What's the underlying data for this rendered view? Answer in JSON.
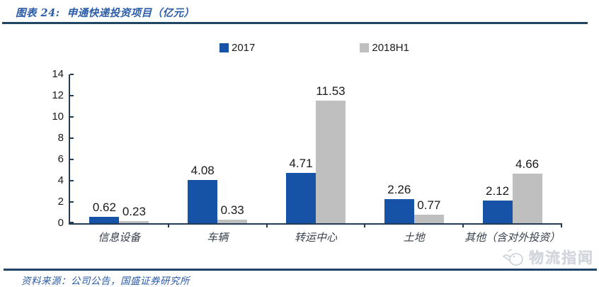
{
  "header": {
    "figure_label": "图表 24:",
    "title": "申通快递投资项目（亿元）"
  },
  "chart_data": {
    "type": "bar",
    "title": "申通快递投资项目（亿元）",
    "categories": [
      "信息设备",
      "车辆",
      "转运中心",
      "土地",
      "其他（含对外投资）"
    ],
    "series": [
      {
        "name": "2017",
        "color": "#1653A6",
        "values": [
          0.62,
          4.08,
          4.71,
          2.26,
          2.12
        ]
      },
      {
        "name": "2018H1",
        "color": "#BFBFBF",
        "values": [
          0.23,
          0.33,
          11.53,
          0.77,
          4.66
        ]
      }
    ],
    "xlabel": "",
    "ylabel": "",
    "ylim": [
      0,
      14
    ],
    "yticks": [
      0,
      2,
      4,
      6,
      8,
      10,
      12,
      14
    ],
    "grid": false,
    "legend_position": "top"
  },
  "colors": {
    "accent_navy": "#1F4566",
    "title_blue": "#2A5CA8",
    "bar_blue": "#1653A6",
    "bar_gray": "#BFBFBF"
  },
  "footer": {
    "source": "资料来源：公司公告，国盛证券研究所"
  },
  "watermark": {
    "text": "物流指闻"
  }
}
